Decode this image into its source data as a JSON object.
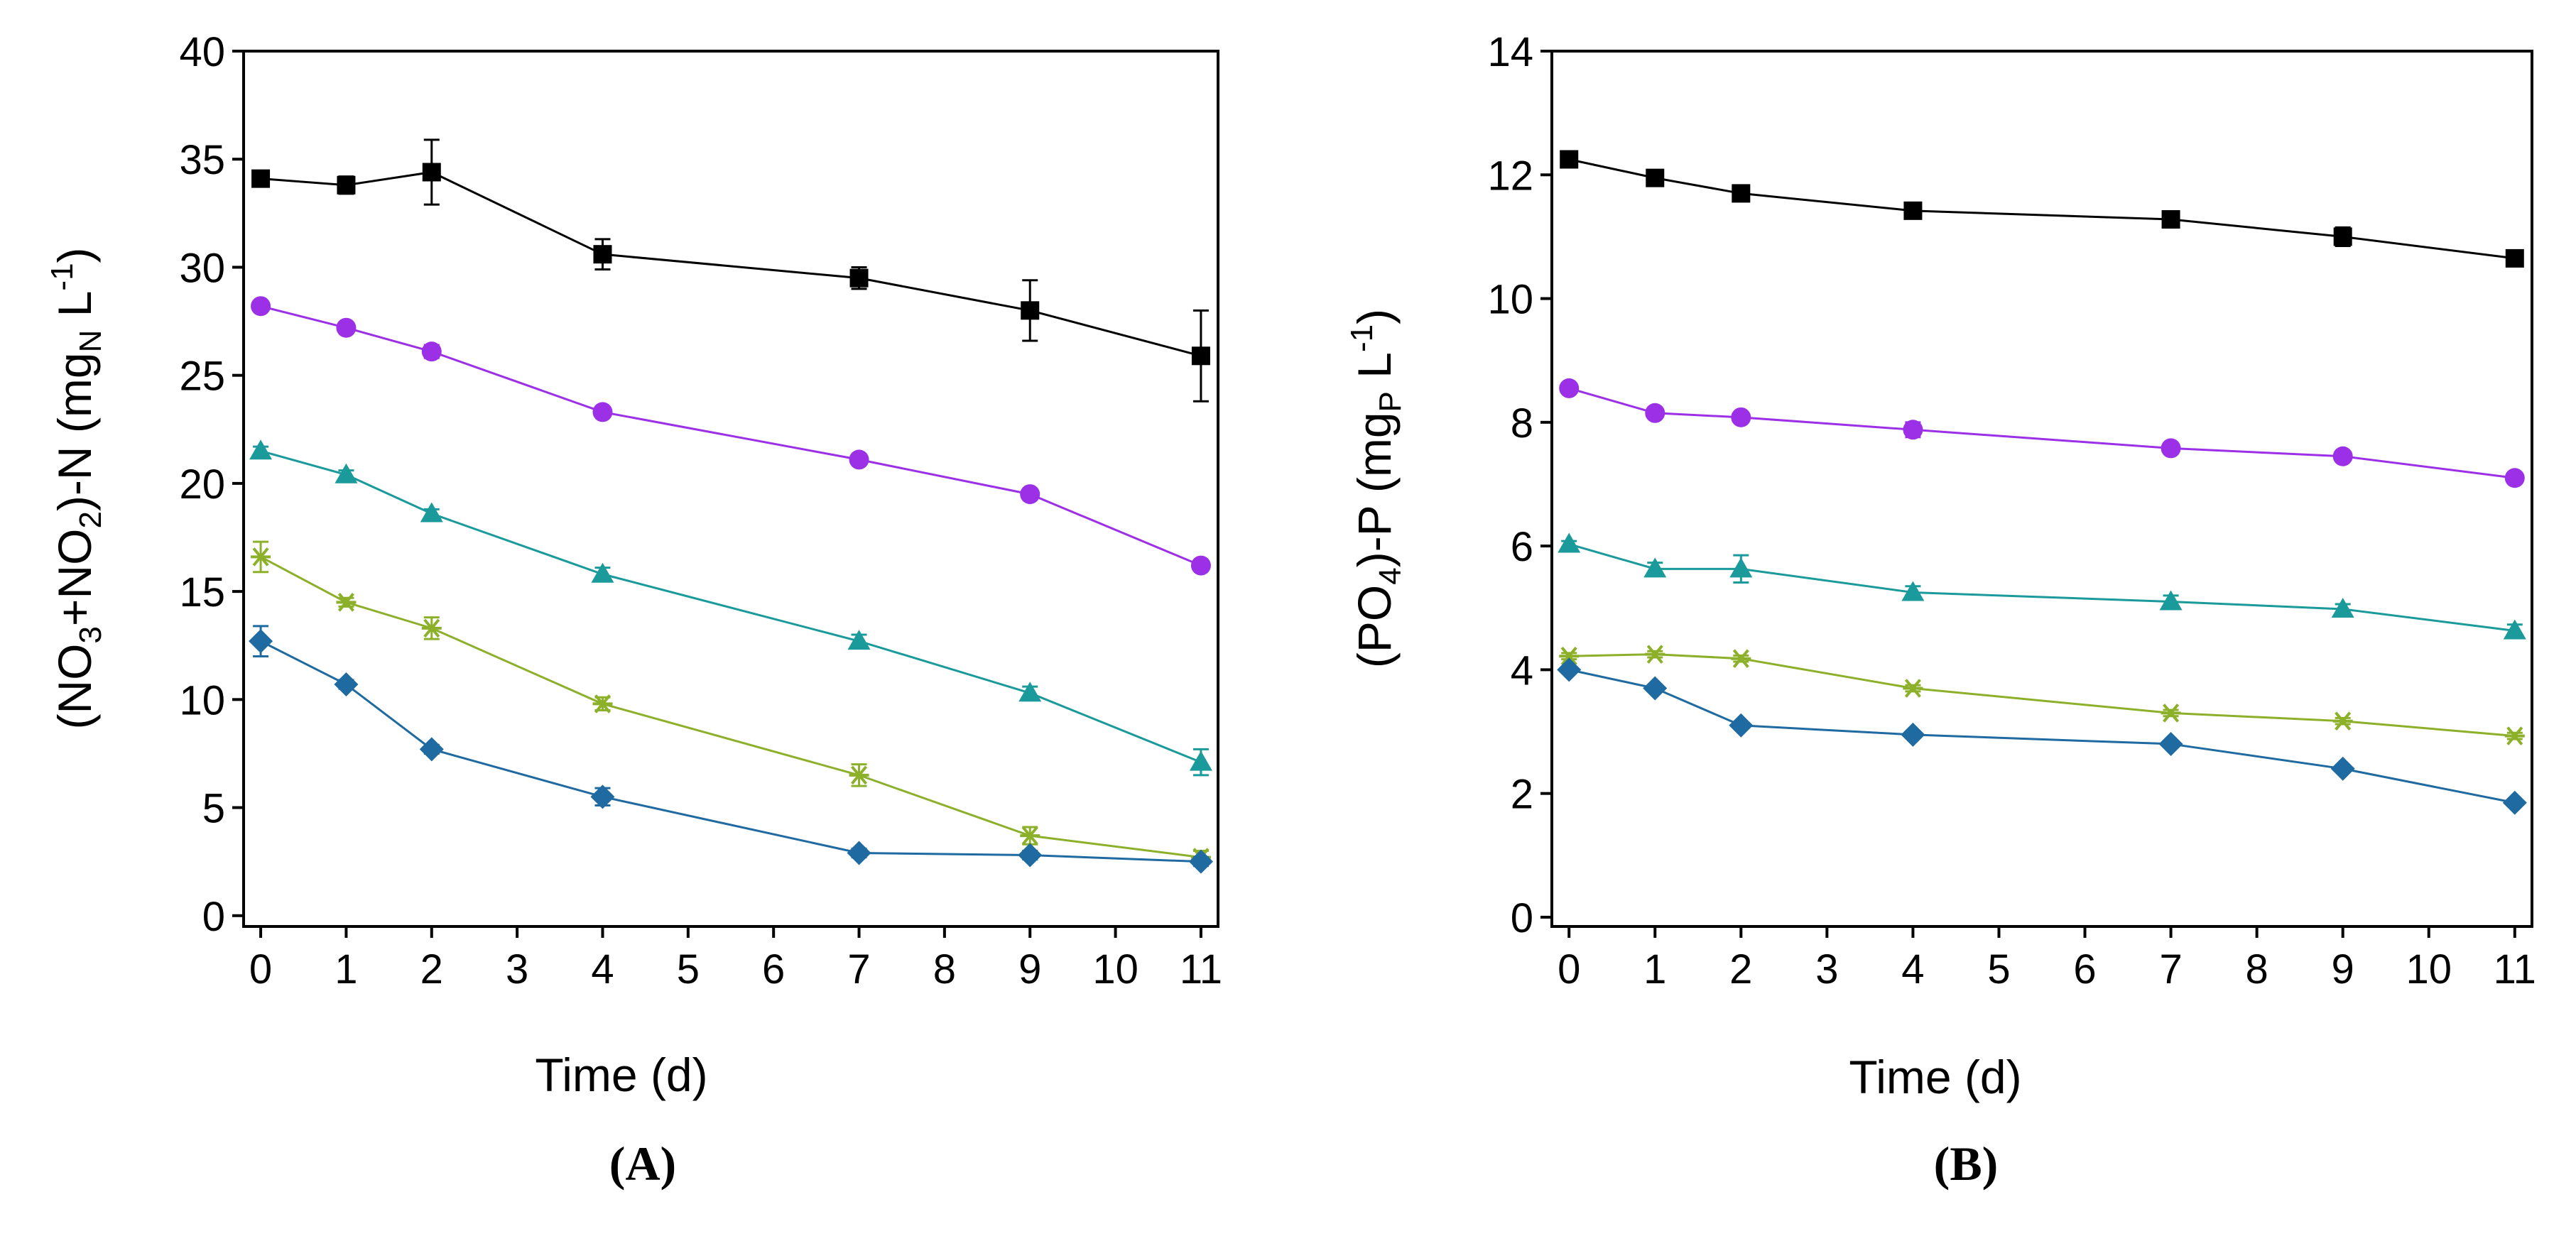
{
  "chart_data": [
    {
      "type": "line",
      "panel_label": "(A)",
      "xlabel": "Time (d)",
      "ylabel": {
        "p1": "(NO",
        "s1": "3",
        "p2": "+NO",
        "s2": "2",
        "p3": ")-N (mg",
        "s3": "N",
        "p4": " L",
        "sup": "-1",
        "p5": ")"
      },
      "xlim": [
        -0.2,
        11.2
      ],
      "ylim": [
        -0.5,
        40
      ],
      "x_ticks": [
        0,
        1,
        2,
        3,
        4,
        5,
        6,
        7,
        8,
        9,
        10,
        11
      ],
      "x_tick_labels": [
        "0",
        "1",
        "2",
        "3",
        "4",
        "5",
        "6",
        "7",
        "8",
        "9",
        "10",
        "11"
      ],
      "y_ticks": [
        0,
        5,
        10,
        15,
        20,
        25,
        30,
        35,
        40
      ],
      "y_tick_labels": [
        "0",
        "5",
        "10",
        "15",
        "20",
        "25",
        "30",
        "35",
        "40"
      ],
      "x": [
        0,
        1,
        2,
        4,
        7,
        9,
        11
      ],
      "series": [
        {
          "name": "black-squares",
          "marker": "square",
          "color": "#000000",
          "values": [
            34.1,
            33.8,
            34.4,
            30.6,
            29.5,
            28.0,
            25.9
          ],
          "errors": [
            0.3,
            0.4,
            1.5,
            0.7,
            0.5,
            1.4,
            2.1
          ]
        },
        {
          "name": "purple-circles",
          "marker": "circle",
          "color": "#9b30e6",
          "values": [
            28.2,
            27.2,
            26.1,
            23.3,
            21.1,
            19.5,
            16.2
          ],
          "errors": [
            0.2,
            0.2,
            0.3,
            0.2,
            0.2,
            0.2,
            0.2
          ]
        },
        {
          "name": "teal-triangles",
          "marker": "triangle",
          "color": "#1a9a9a",
          "values": [
            21.5,
            20.4,
            18.6,
            15.8,
            12.7,
            10.3,
            7.1
          ],
          "errors": [
            0.2,
            0.2,
            0.2,
            0.3,
            0.3,
            0.3,
            0.6
          ]
        },
        {
          "name": "olive-stars",
          "marker": "star",
          "color": "#8db02a",
          "values": [
            16.6,
            14.5,
            13.3,
            9.8,
            6.5,
            3.7,
            2.7
          ],
          "errors": [
            0.7,
            0.2,
            0.5,
            0.3,
            0.5,
            0.4,
            0.3
          ]
        },
        {
          "name": "blue-diamonds",
          "marker": "diamond",
          "color": "#1f6aa0",
          "values": [
            12.7,
            10.7,
            7.7,
            5.5,
            2.9,
            2.8,
            2.5
          ],
          "errors": [
            0.7,
            0.2,
            0.2,
            0.4,
            0.2,
            0.2,
            0.2
          ]
        }
      ]
    },
    {
      "type": "line",
      "panel_label": "(B)",
      "xlabel": "Time (d)",
      "ylabel": {
        "p1": "(PO",
        "s1": "4",
        "p2": ")-P (mg",
        "s2": "P",
        "p3": " L",
        "sup": "-1",
        "p4": ")"
      },
      "xlim": [
        -0.2,
        11.2
      ],
      "ylim": [
        -0.15,
        14
      ],
      "x_ticks": [
        0,
        1,
        2,
        3,
        4,
        5,
        6,
        7,
        8,
        9,
        10,
        11
      ],
      "x_tick_labels": [
        "0",
        "1",
        "2",
        "3",
        "4",
        "5",
        "6",
        "7",
        "8",
        "9",
        "10",
        "11"
      ],
      "y_ticks": [
        0,
        2,
        4,
        6,
        8,
        10,
        12,
        14
      ],
      "y_tick_labels": [
        "0",
        "2",
        "4",
        "6",
        "8",
        "10",
        "12",
        "14"
      ],
      "x": [
        0,
        1,
        2,
        4,
        7,
        9,
        11
      ],
      "series": [
        {
          "name": "black-squares",
          "marker": "square",
          "color": "#000000",
          "values": [
            12.25,
            11.95,
            11.7,
            11.42,
            11.28,
            11.0,
            10.65
          ],
          "errors": [
            0.05,
            0.06,
            0.06,
            0.12,
            0.06,
            0.15,
            0.05
          ]
        },
        {
          "name": "purple-circles",
          "marker": "circle",
          "color": "#9b30e6",
          "values": [
            8.55,
            8.15,
            8.08,
            7.88,
            7.58,
            7.45,
            7.1
          ],
          "errors": [
            0.05,
            0.05,
            0.05,
            0.12,
            0.08,
            0.05,
            0.05
          ]
        },
        {
          "name": "teal-triangles",
          "marker": "triangle",
          "color": "#1a9a9a",
          "values": [
            6.03,
            5.63,
            5.63,
            5.25,
            5.1,
            4.98,
            4.63
          ],
          "errors": [
            0.05,
            0.1,
            0.22,
            0.1,
            0.1,
            0.08,
            0.1
          ]
        },
        {
          "name": "olive-stars",
          "marker": "star",
          "color": "#8db02a",
          "values": [
            4.22,
            4.25,
            4.18,
            3.7,
            3.3,
            3.17,
            2.93
          ],
          "errors": [
            0.05,
            0.05,
            0.05,
            0.05,
            0.05,
            0.05,
            0.05
          ]
        },
        {
          "name": "blue-diamonds",
          "marker": "diamond",
          "color": "#1f6aa0",
          "values": [
            4.0,
            3.7,
            3.1,
            2.95,
            2.8,
            2.4,
            1.85
          ],
          "errors": [
            0.05,
            0.05,
            0.05,
            0.05,
            0.05,
            0.05,
            0.05
          ]
        }
      ]
    }
  ]
}
